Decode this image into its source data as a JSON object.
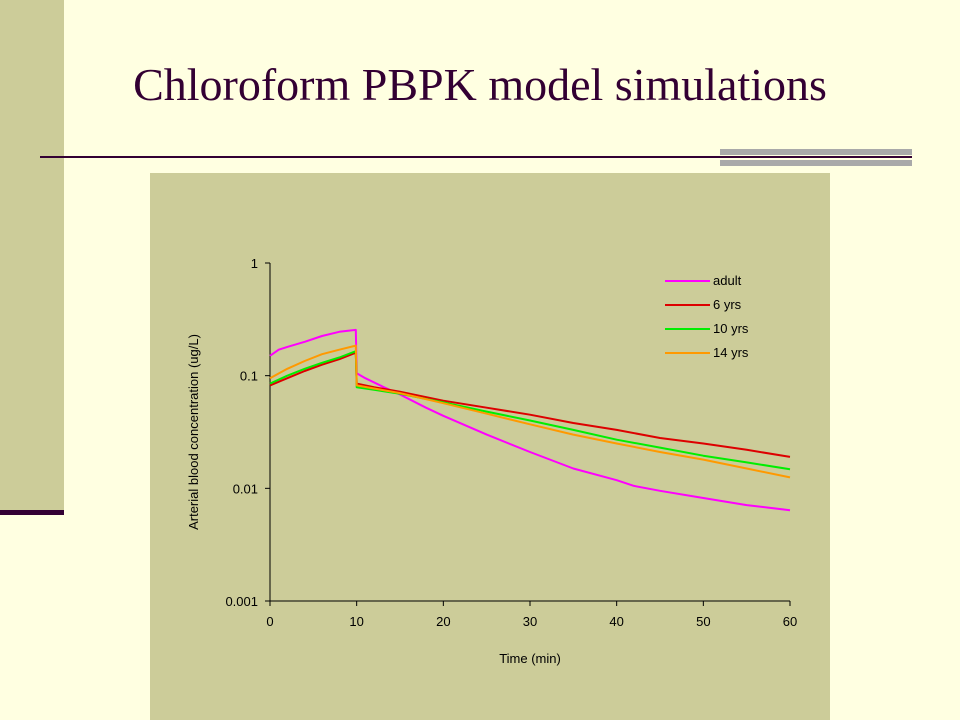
{
  "slide": {
    "title": "Chloroform PBPK model simulations"
  },
  "chart_data": {
    "type": "line",
    "title": "",
    "xlabel": "Time (min)",
    "ylabel": "Arterial blood concentration (ug/L)",
    "xlim": [
      0,
      60
    ],
    "ylim": [
      0.001,
      1
    ],
    "yscale": "log",
    "x_ticks": [
      "0",
      "10",
      "20",
      "30",
      "40",
      "50",
      "60"
    ],
    "y_ticks": [
      "0.001",
      "0.01",
      "0.1",
      "1"
    ],
    "grid": false,
    "legend_position": "top-right",
    "series": [
      {
        "name": "adult",
        "color": "#FF00FF",
        "x": [
          0,
          1,
          2,
          4,
          6,
          8,
          9.9,
          10,
          11,
          13,
          15,
          18,
          20,
          25,
          30,
          35,
          40,
          42,
          45,
          50,
          55,
          60
        ],
        "y": [
          0.15,
          0.17,
          0.18,
          0.2,
          0.225,
          0.245,
          0.255,
          0.105,
          0.095,
          0.08,
          0.068,
          0.052,
          0.044,
          0.03,
          0.021,
          0.015,
          0.0118,
          0.0105,
          0.0095,
          0.0082,
          0.0071,
          0.0064
        ]
      },
      {
        "name": "6 yrs",
        "color": "#DD0000",
        "x": [
          0,
          2,
          4,
          6,
          8,
          9.9,
          10,
          12,
          15,
          20,
          25,
          30,
          35,
          40,
          45,
          50,
          55,
          60
        ],
        "y": [
          0.082,
          0.095,
          0.11,
          0.125,
          0.14,
          0.16,
          0.085,
          0.079,
          0.072,
          0.06,
          0.052,
          0.045,
          0.038,
          0.033,
          0.028,
          0.025,
          0.022,
          0.019
        ]
      },
      {
        "name": "10 yrs",
        "color": "#00EE00",
        "x": [
          0,
          2,
          4,
          6,
          8,
          9.9,
          10,
          12,
          15,
          20,
          25,
          30,
          35,
          40,
          45,
          50,
          55,
          60
        ],
        "y": [
          0.085,
          0.1,
          0.115,
          0.13,
          0.145,
          0.165,
          0.079,
          0.075,
          0.069,
          0.058,
          0.048,
          0.04,
          0.033,
          0.027,
          0.023,
          0.0195,
          0.017,
          0.0148
        ]
      },
      {
        "name": "14 yrs",
        "color": "#FF9900",
        "x": [
          0,
          2,
          4,
          6,
          8,
          9.9,
          10,
          12,
          15,
          20,
          25,
          30,
          35,
          40,
          45,
          50,
          55,
          60
        ],
        "y": [
          0.095,
          0.115,
          0.135,
          0.155,
          0.17,
          0.185,
          0.082,
          0.077,
          0.07,
          0.057,
          0.046,
          0.037,
          0.03,
          0.025,
          0.021,
          0.018,
          0.015,
          0.0125
        ]
      }
    ]
  }
}
